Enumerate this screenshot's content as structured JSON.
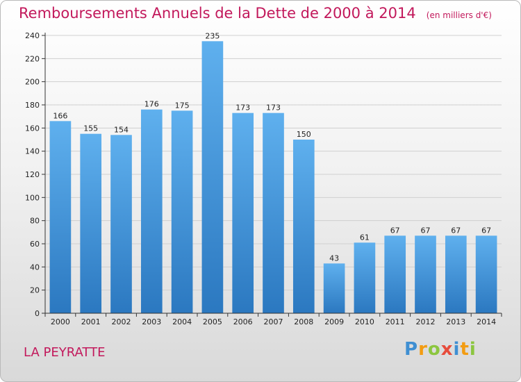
{
  "chart_data": {
    "type": "bar",
    "title": "Remboursements Annuels de la Dette de 2000 à 2014",
    "unit": "(en milliers d'€)",
    "categories": [
      "2000",
      "2001",
      "2002",
      "2003",
      "2004",
      "2005",
      "2006",
      "2007",
      "2008",
      "2009",
      "2010",
      "2011",
      "2012",
      "2013",
      "2014"
    ],
    "values": [
      166,
      155,
      154,
      176,
      175,
      235,
      173,
      173,
      150,
      43,
      61,
      67,
      67,
      67,
      67
    ],
    "ylim": [
      0,
      240
    ],
    "yticks": [
      0,
      20,
      40,
      60,
      80,
      100,
      120,
      140,
      160,
      180,
      200,
      220,
      240
    ],
    "grid": true,
    "bar_color": "#4a9de0"
  },
  "footer": {
    "commune": "LA PEYRATTE"
  },
  "logo": {
    "letters": [
      "P",
      "r",
      "o",
      "x",
      "i",
      "t",
      "i"
    ]
  }
}
